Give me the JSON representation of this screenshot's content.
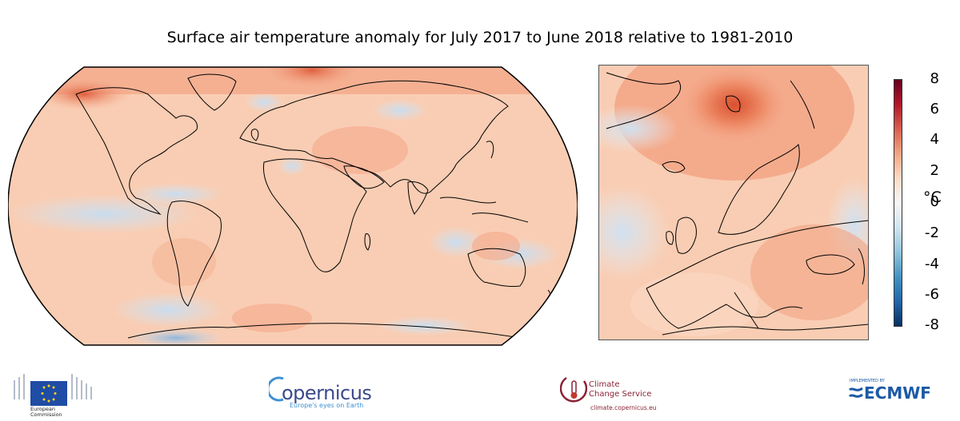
{
  "title": "Surface air temperature anomaly for July 2017 to June 2018 relative to 1981-2010",
  "colorbar": {
    "ticks": [
      "8",
      "6",
      "4",
      "2",
      "0",
      "-2",
      "-4",
      "-6",
      "-8"
    ],
    "unit": "°C",
    "colors": [
      "#67001f",
      "#b2182b",
      "#d6604d",
      "#f4a582",
      "#fddbc7",
      "#f7f7f7",
      "#d1e5f0",
      "#92c5de",
      "#4393c3",
      "#2166ac",
      "#053061"
    ]
  },
  "map_colors": {
    "warm_base": "#f9cdb3",
    "warm_mid": "#f4a98a",
    "hot": "#e0603f",
    "neutral": "#fbe3d6",
    "cool": "#d8e6f2",
    "cold": "#9fc1df"
  },
  "logos": {
    "european_commission": {
      "line1": "European",
      "line2": "Commission"
    },
    "copernicus": {
      "name": "opernicus",
      "tagline": "Europe's eyes on Earth"
    },
    "c3s": {
      "line1": "Climate",
      "line2": "Change Service",
      "url": "climate.copernicus.eu"
    },
    "ecmwf": {
      "implemented_by": "IMPLEMENTED BY",
      "name": "ECMWF"
    }
  }
}
